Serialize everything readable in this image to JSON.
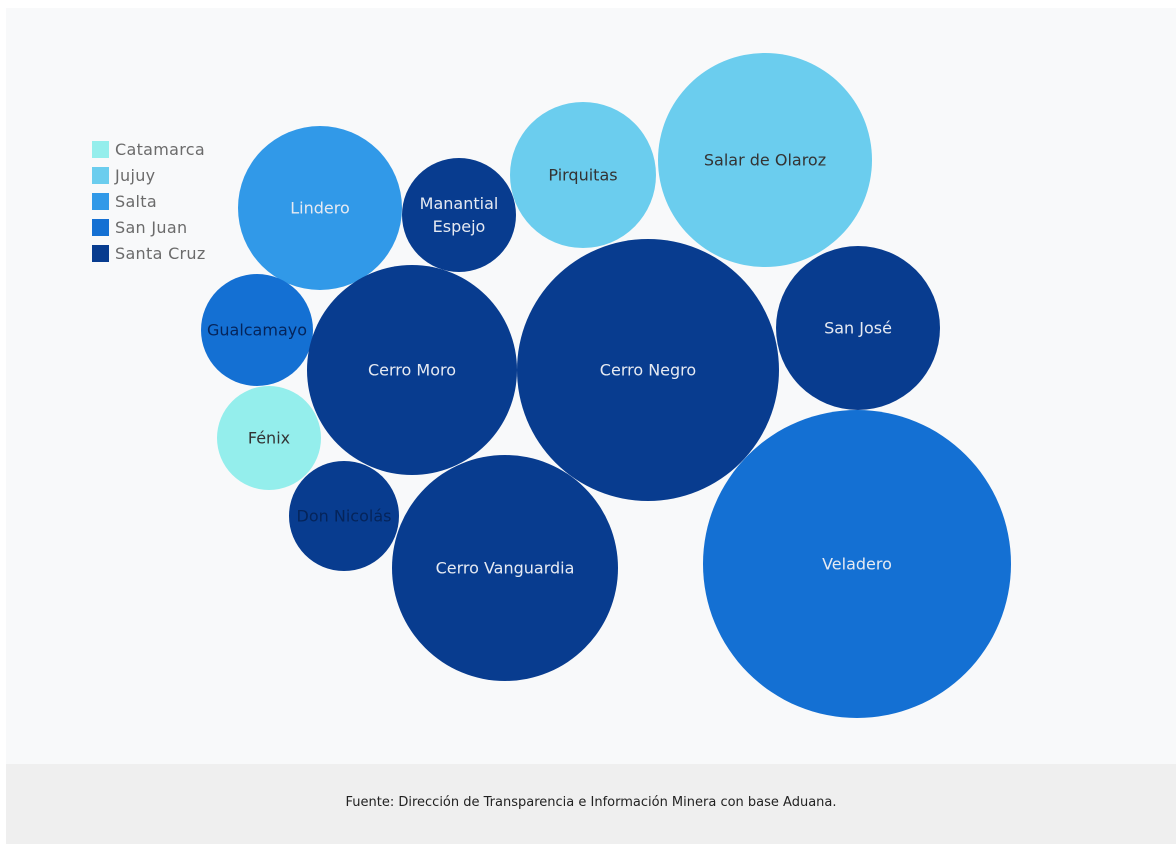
{
  "chart_data": {
    "type": "bubble",
    "title": "",
    "legend": {
      "placement": "top-left",
      "items": [
        {
          "name": "Catamarca",
          "color": "#94eeec"
        },
        {
          "name": "Jujuy",
          "color": "#6bcdee"
        },
        {
          "name": "Salta",
          "color": "#3199e8"
        },
        {
          "name": "San Juan",
          "color": "#1470d3"
        },
        {
          "name": "Santa Cruz",
          "color": "#083c8f"
        }
      ]
    },
    "bubbles": [
      {
        "label": [
          "Lindero"
        ],
        "category": "Salta"
      },
      {
        "label": [
          "Manantial",
          "Espejo"
        ],
        "category": "Santa Cruz"
      },
      {
        "label": [
          "Pirquitas"
        ],
        "category": "Jujuy"
      },
      {
        "label": [
          "Salar de Olaroz"
        ],
        "category": "Jujuy"
      },
      {
        "label": [
          "Gualcamayo"
        ],
        "category": "San Juan"
      },
      {
        "label": [
          "Cerro Moro"
        ],
        "category": "Santa Cruz"
      },
      {
        "label": [
          "Cerro Negro"
        ],
        "category": "Santa Cruz"
      },
      {
        "label": [
          "San José"
        ],
        "category": "Santa Cruz"
      },
      {
        "label": [
          "Fénix"
        ],
        "category": "Catamarca"
      },
      {
        "label": [
          "Don Nicolás"
        ],
        "category": "Santa Cruz"
      },
      {
        "label": [
          "Cerro Vanguardia"
        ],
        "category": "Santa Cruz"
      },
      {
        "label": [
          "Veladero"
        ],
        "category": "San Juan"
      }
    ]
  },
  "source": "Fuente: Dirección de Transparencia e Información Minera con base Aduana."
}
